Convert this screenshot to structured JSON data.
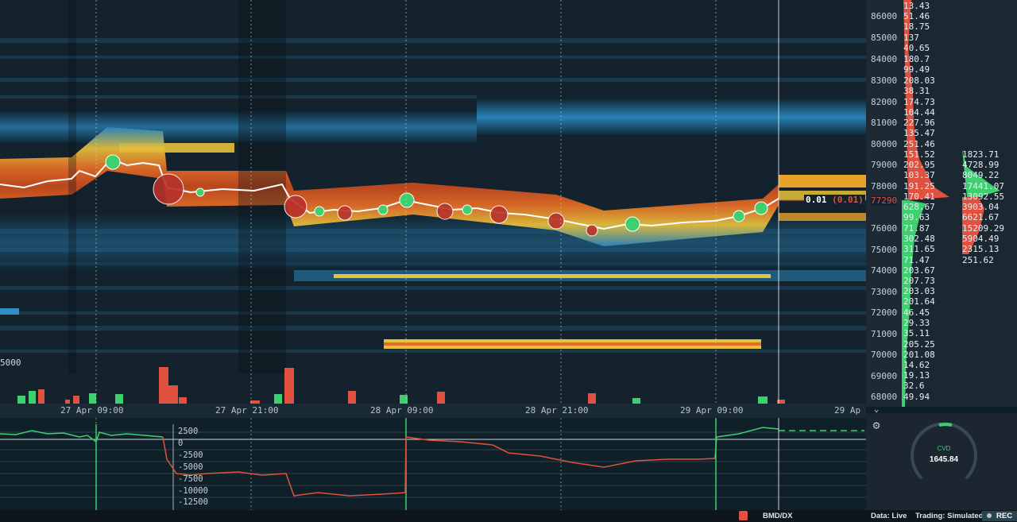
{
  "price_axis": [
    "86000",
    "85000",
    "84000",
    "83000",
    "82000",
    "81000",
    "80000",
    "79000",
    "78000",
    "77290",
    "76000",
    "75000",
    "74000",
    "73000",
    "72000",
    "71000",
    "70000",
    "69000",
    "68000"
  ],
  "ask_volumes": [
    "13.43",
    "51.46",
    "18.75",
    "137",
    "40.65",
    "180.7",
    "99.49",
    "208.03",
    "38.31",
    "174.73",
    "104.44",
    "227.96",
    "135.47",
    "251.46",
    "151.52",
    "202.95",
    "103.37",
    "191.25",
    "170.41"
  ],
  "bid_volumes": [
    "628.67",
    "99.63",
    "71.87",
    "302.48",
    "311.65",
    "71.47",
    "203.67",
    "207.73",
    "203.03",
    "201.64",
    "46.45",
    "29.33",
    "35.11",
    "205.25",
    "201.08",
    "14.62",
    "19.13",
    "32.6",
    "49.94"
  ],
  "depth_volumes": [
    "1823.71",
    "4728.99",
    "8049.22",
    "17441.07",
    "13092.55",
    "3903.04",
    "6621.67",
    "15209.29",
    "5904.49",
    "2315.13",
    "251.62"
  ],
  "current_price_marker": {
    "value": "0.01",
    "change": "(0.01)",
    "price": "77290"
  },
  "left_edge_label": "5000",
  "time_axis": [
    "27 Apr 09:00",
    "27 Apr 21:00",
    "28 Apr 09:00",
    "28 Apr 21:00",
    "29 Apr 09:00",
    "29 Ap"
  ],
  "cvd_axis": [
    "2500",
    "0",
    "-2500",
    "-5000",
    "-7500",
    "-10000",
    "-12500"
  ],
  "cvd_gauge": {
    "label": "CVD",
    "value": "1645.84"
  },
  "status_bar": {
    "instrument": "BMD/DX",
    "data_label": "Data: Live",
    "trading_label": "Trading: Simulated",
    "rec_label": "REC"
  },
  "colors": {
    "background": "#0f1f2a",
    "ask": "#e0523f",
    "bid": "#3ecf6f",
    "liquidity_hot": "#f0a62a",
    "liquidity_cool": "#2f8fc4"
  },
  "icons": {
    "settings": "gear-icon",
    "expand": "chevron-down-icon",
    "alert": "alert-icon"
  }
}
